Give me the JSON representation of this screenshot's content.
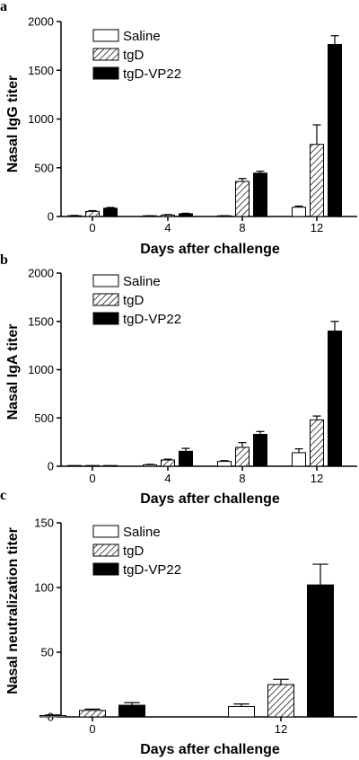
{
  "chart_data": [
    {
      "type": "bar",
      "panel_label": "a",
      "categories": [
        "0",
        "4",
        "8",
        "12"
      ],
      "xlabel": "Days after challenge",
      "ylabel": "Nasal IgG titer",
      "ylim": [
        0,
        2000
      ],
      "yticks": [
        0,
        500,
        1000,
        1500,
        2000
      ],
      "legend_position": "top-left",
      "series": [
        {
          "name": "Saline",
          "fill": "white",
          "values": [
            8,
            5,
            5,
            95
          ],
          "errors": [
            3,
            3,
            3,
            12
          ]
        },
        {
          "name": "tgD",
          "fill": "hatch",
          "values": [
            52,
            15,
            360,
            740
          ],
          "errors": [
            8,
            5,
            30,
            200
          ]
        },
        {
          "name": "tgD-VP22",
          "fill": "black",
          "values": [
            85,
            28,
            445,
            1765
          ],
          "errors": [
            8,
            5,
            20,
            90
          ]
        }
      ]
    },
    {
      "type": "bar",
      "panel_label": "b",
      "categories": [
        "0",
        "4",
        "8",
        "12"
      ],
      "xlabel": "Days after challenge",
      "ylabel": "Nasal IgA titer",
      "ylim": [
        0,
        2000
      ],
      "yticks": [
        0,
        500,
        1000,
        1500,
        2000
      ],
      "legend_position": "top-left",
      "series": [
        {
          "name": "Saline",
          "fill": "white",
          "values": [
            3,
            15,
            50,
            140
          ],
          "errors": [
            2,
            5,
            8,
            40
          ]
        },
        {
          "name": "tgD",
          "fill": "hatch",
          "values": [
            3,
            65,
            195,
            480
          ],
          "errors": [
            2,
            8,
            50,
            40
          ]
        },
        {
          "name": "tgD-VP22",
          "fill": "black",
          "values": [
            3,
            155,
            330,
            1400
          ],
          "errors": [
            2,
            30,
            30,
            100
          ]
        }
      ]
    },
    {
      "type": "bar",
      "panel_label": "c",
      "categories": [
        "0",
        "12"
      ],
      "xlabel": "Days after challenge",
      "ylabel": "Nasal neutralization titer",
      "ylim": [
        0,
        150
      ],
      "yticks": [
        0,
        50,
        100,
        150
      ],
      "legend_position": "top-left",
      "series": [
        {
          "name": "Saline",
          "fill": "white",
          "values": [
            1,
            8
          ],
          "errors": [
            0.5,
            2
          ]
        },
        {
          "name": "tgD",
          "fill": "hatch",
          "values": [
            5,
            25
          ],
          "errors": [
            1,
            4
          ]
        },
        {
          "name": "tgD-VP22",
          "fill": "black",
          "values": [
            9,
            102
          ],
          "errors": [
            2,
            16
          ]
        }
      ]
    }
  ]
}
